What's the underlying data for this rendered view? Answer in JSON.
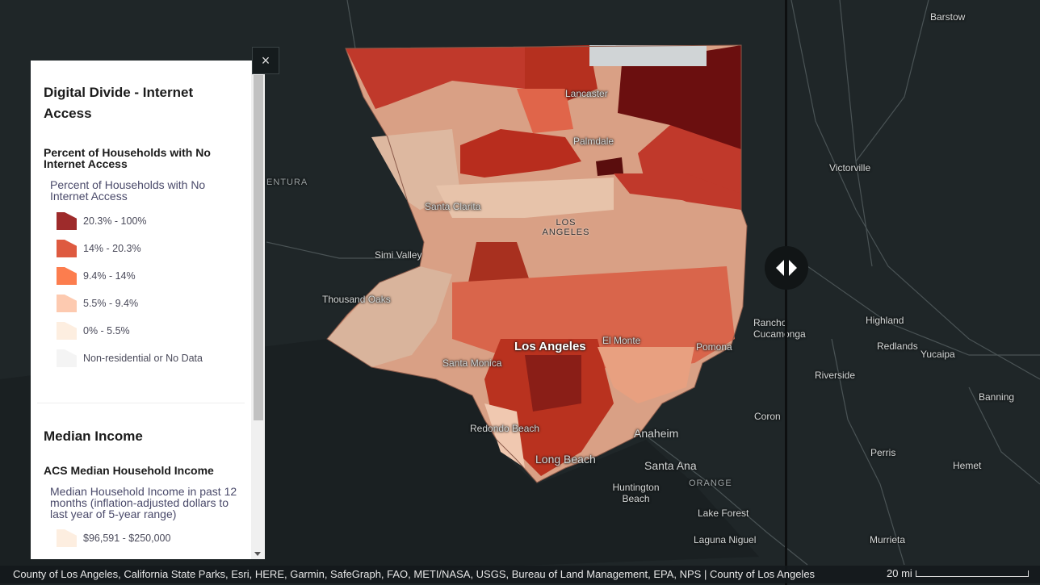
{
  "map": {
    "labels": {
      "barstow": "Barstow",
      "lancaster": "Lancaster",
      "palmdale": "Palmdale",
      "victorville": "Victorville",
      "ventura": "ENTURA",
      "santa_clarita": "Santa Clarita",
      "los_angeles_county": "LOS ANGELES",
      "simi_valley": "Simi Valley",
      "thousand_oaks": "Thousand Oaks",
      "rancho": "Rancho Cucamonga",
      "highland": "Highland",
      "redlands": "Redlands",
      "yucaipa": "Yucaipa",
      "los_angeles": "Los Angeles",
      "el_monte": "El Monte",
      "pomona": "Pomona",
      "santa_monica": "Santa Monica",
      "riverside": "Riverside",
      "banning": "Banning",
      "corona": "Coron",
      "redondo_beach": "Redondo Beach",
      "anaheim": "Anaheim",
      "long_beach": "Long Beach",
      "santa_ana": "Santa Ana",
      "perris": "Perris",
      "hemet": "Hemet",
      "huntington_beach": "Huntington Beach",
      "orange": "ORANGE",
      "lake_forest": "Lake Forest",
      "laguna_niguel": "Laguna Niguel",
      "murrieta": "Murrieta"
    },
    "colors": {
      "class1": "#9e2b2b",
      "class2": "#de5a40",
      "class3": "#fc7d4e",
      "class4": "#fdcab0",
      "class5": "#fdeee0",
      "base": "#d9a085"
    }
  },
  "legend": {
    "close_label": "×",
    "section1": {
      "title": "Digital Divide - Internet Access",
      "layer": "Percent of Households with No Internet Access",
      "field": "Percent of Households with No Internet Access",
      "classes": [
        {
          "label": "20.3% - 100%",
          "color": "#9e2b2b"
        },
        {
          "label": "14% - 20.3%",
          "color": "#de5a40"
        },
        {
          "label": "9.4% - 14%",
          "color": "#fc7d4e"
        },
        {
          "label": "5.5% - 9.4%",
          "color": "#fdcab0"
        },
        {
          "label": "0% - 5.5%",
          "color": "#fdeee0"
        },
        {
          "label": "Non-residential or No Data",
          "color": "#ffffff"
        }
      ]
    },
    "section2": {
      "title": "Median Income",
      "layer": "ACS Median Household Income",
      "field": "Median Household Income in past 12 months (inflation-adjusted dollars to last year of 5-year range)",
      "classes": [
        {
          "label": "$96,591 - $250,000",
          "color": "#fdeee0"
        }
      ]
    }
  },
  "footer": {
    "attribution": "County of Los Angeles, California State Parks, Esri, HERE, Garmin, SafeGraph, FAO, METI/NASA, USGS, Bureau of Land Management, EPA, NPS | County of Los Angeles",
    "scale": "20 mi"
  }
}
